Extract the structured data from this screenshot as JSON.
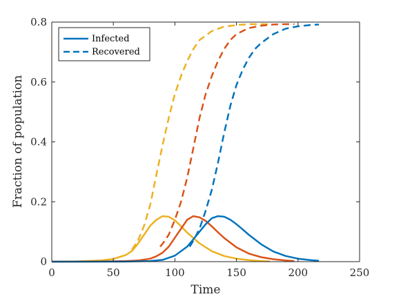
{
  "chart_data": {
    "type": "line",
    "title": "",
    "xlabel": "Time",
    "ylabel": "Fraction of population",
    "xlim": [
      0,
      250
    ],
    "ylim": [
      0,
      0.8
    ],
    "xticks": [
      0,
      50,
      100,
      150,
      200,
      250
    ],
    "yticks": [
      0,
      0.2,
      0.4,
      0.6,
      0.8
    ],
    "xtick_labels": [
      "0",
      "50",
      "100",
      "150",
      "200",
      "250"
    ],
    "ytick_labels": [
      "0",
      "0.2",
      "0.4",
      "0.6",
      "0.8"
    ],
    "grid": false,
    "legend": {
      "position": "top-left",
      "entries": [
        {
          "label": "Infected",
          "style": "solid",
          "color": "#0072BD"
        },
        {
          "label": "Recovered",
          "style": "dashed",
          "color": "#0072BD"
        }
      ]
    },
    "series": [
      {
        "kind": "Infected",
        "style": "solid",
        "color": "#EDB120",
        "x": [
          0,
          20,
          40,
          50,
          60,
          65,
          70,
          75,
          80,
          85,
          90,
          95,
          100,
          105,
          110,
          120,
          130,
          140,
          150,
          160,
          170,
          177
        ],
        "y": [
          0,
          0.001,
          0.004,
          0.009,
          0.022,
          0.035,
          0.06,
          0.09,
          0.12,
          0.14,
          0.152,
          0.15,
          0.138,
          0.118,
          0.097,
          0.061,
          0.035,
          0.019,
          0.01,
          0.005,
          0.002,
          0.001
        ]
      },
      {
        "kind": "Recovered",
        "style": "dashed",
        "color": "#EDB120",
        "x": [
          65,
          70,
          75,
          80,
          85,
          90,
          95,
          100,
          105,
          110,
          115,
          120,
          130,
          140,
          150,
          160,
          170,
          177
        ],
        "y": [
          0.04,
          0.07,
          0.12,
          0.19,
          0.29,
          0.39,
          0.48,
          0.56,
          0.62,
          0.67,
          0.71,
          0.74,
          0.77,
          0.785,
          0.79,
          0.793,
          0.793,
          0.793
        ]
      },
      {
        "kind": "Infected",
        "style": "solid",
        "color": "#D95319",
        "x": [
          0,
          40,
          60,
          70,
          80,
          85,
          90,
          95,
          100,
          105,
          110,
          115,
          120,
          125,
          130,
          135,
          140,
          150,
          160,
          170,
          180,
          190,
          197
        ],
        "y": [
          0,
          0.0005,
          0.002,
          0.004,
          0.01,
          0.018,
          0.03,
          0.05,
          0.08,
          0.11,
          0.14,
          0.152,
          0.148,
          0.136,
          0.118,
          0.098,
          0.079,
          0.048,
          0.027,
          0.015,
          0.008,
          0.004,
          0.002
        ]
      },
      {
        "kind": "Recovered",
        "style": "dashed",
        "color": "#D95319",
        "x": [
          88,
          90,
          95,
          100,
          105,
          110,
          115,
          120,
          125,
          130,
          135,
          140,
          145,
          150,
          160,
          170,
          180,
          190,
          197
        ],
        "y": [
          0.05,
          0.06,
          0.09,
          0.14,
          0.2,
          0.28,
          0.38,
          0.48,
          0.56,
          0.62,
          0.67,
          0.71,
          0.74,
          0.76,
          0.78,
          0.788,
          0.792,
          0.793,
          0.793
        ]
      },
      {
        "kind": "Infected",
        "style": "solid",
        "color": "#0072BD",
        "x": [
          0,
          60,
          80,
          90,
          100,
          110,
          115,
          120,
          125,
          130,
          135,
          140,
          145,
          150,
          155,
          160,
          170,
          180,
          190,
          200,
          210,
          217
        ],
        "y": [
          0,
          0.0002,
          0.002,
          0.006,
          0.02,
          0.05,
          0.075,
          0.1,
          0.125,
          0.145,
          0.152,
          0.15,
          0.14,
          0.125,
          0.108,
          0.09,
          0.058,
          0.034,
          0.019,
          0.01,
          0.005,
          0.003
        ]
      },
      {
        "kind": "Recovered",
        "style": "dashed",
        "color": "#0072BD",
        "x": [
          112,
          115,
          120,
          125,
          130,
          135,
          140,
          145,
          150,
          155,
          160,
          165,
          170,
          180,
          190,
          200,
          210,
          217
        ],
        "y": [
          0.05,
          0.07,
          0.11,
          0.17,
          0.24,
          0.33,
          0.43,
          0.52,
          0.59,
          0.64,
          0.68,
          0.71,
          0.73,
          0.76,
          0.778,
          0.786,
          0.79,
          0.792
        ]
      }
    ]
  }
}
